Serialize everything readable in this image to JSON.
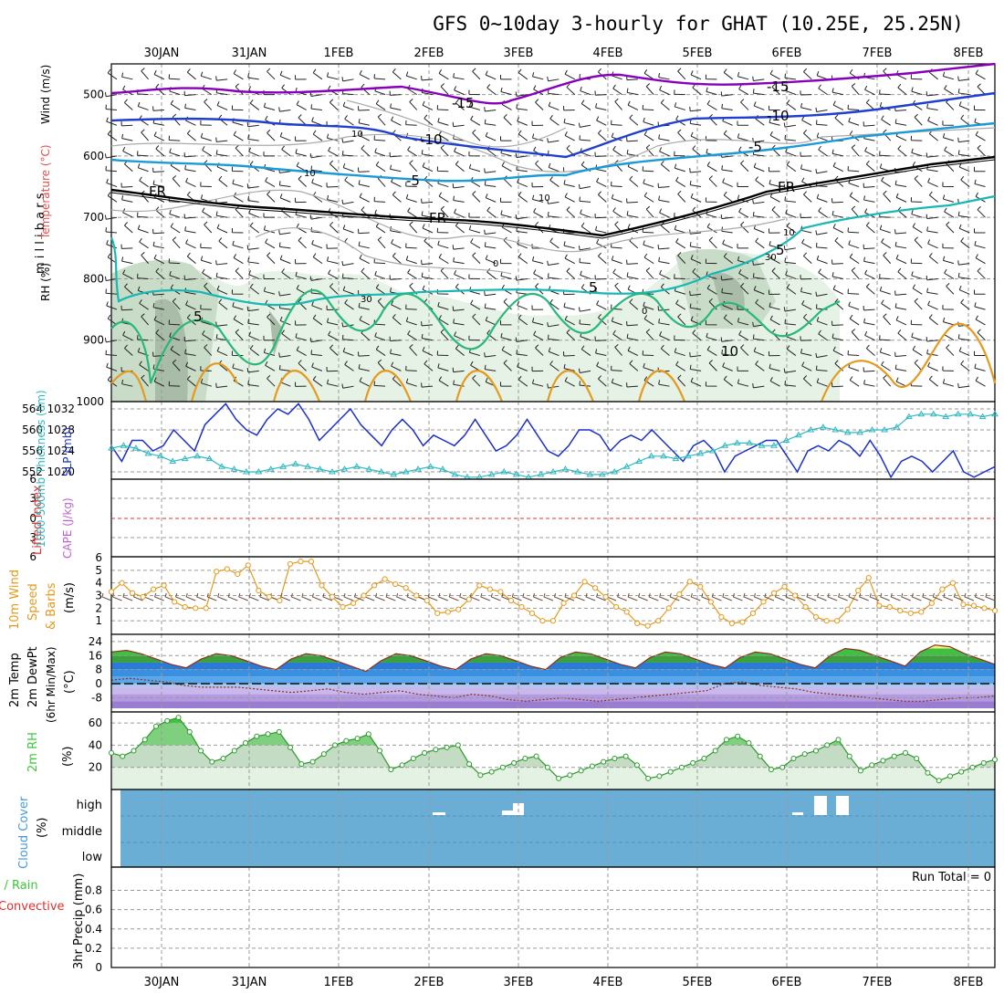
{
  "title": "GFS 0~10day 3-hourly for GHAT (10.25E, 25.25N)",
  "colors": {
    "purple": "#8800bb",
    "blue": "#1e3fd0",
    "lightblue": "#1a9ad6",
    "teal": "#18b8b4",
    "green": "#28b878",
    "orange": "#e49a1e",
    "cloud": "#6aaed6",
    "rh": "#3ac83a",
    "wind10": "#e49a1e",
    "slp": "#1a30c8",
    "thick": "#30b8c0"
  },
  "chart_data": [
    {
      "type": "contour",
      "name": "upper-air",
      "x_dates": [
        "30JAN",
        "31JAN",
        "1FEB",
        "2FEB",
        "3FEB",
        "4FEB",
        "5FEB",
        "6FEB",
        "7FEB",
        "8FEB"
      ],
      "y_label": "m i l l i b a r s",
      "y_ticks": [
        "500",
        "600",
        "700",
        "800",
        "900",
        "1000"
      ],
      "y_range": [
        450,
        1000
      ],
      "left_labels": {
        "rh": "RH (%)",
        "temp": "Temperature (°C)",
        "wind": "Wind (m/s)"
      },
      "contour_labels": [
        "-15",
        "-15",
        "-10",
        "-10",
        "-5",
        "-5",
        "FR",
        "FR",
        "FR",
        "10",
        "10",
        "10",
        "30",
        "30",
        "5",
        "5",
        "5",
        "0",
        "0",
        "10",
        "10"
      ]
    },
    {
      "type": "line",
      "name": "slp-thickness",
      "left_ticks": [
        "564",
        "560",
        "556",
        "552"
      ],
      "right_ticks": [
        "1032",
        "1028",
        "1024",
        "1020"
      ],
      "left_label": "1000-500mb Thickness (dm)",
      "right_label": "SLP (mb)",
      "slp": [
        1025,
        1022,
        1026,
        1026,
        1024,
        1025,
        1028,
        1026,
        1024,
        1029,
        1031,
        1033,
        1030,
        1028,
        1027,
        1030,
        1032,
        1031,
        1033,
        1030,
        1026,
        1028,
        1030,
        1032,
        1029,
        1027,
        1025,
        1028,
        1030,
        1028,
        1025,
        1027,
        1026,
        1025,
        1027,
        1030,
        1027,
        1024,
        1025,
        1027,
        1030,
        1027,
        1024,
        1023,
        1025,
        1028,
        1028,
        1027,
        1024,
        1026,
        1027,
        1026,
        1028,
        1026,
        1024,
        1022,
        1025,
        1026,
        1024,
        1020,
        1023,
        1024,
        1025,
        1026,
        1026,
        1023,
        1020,
        1024,
        1025,
        1024,
        1026,
        1025,
        1023,
        1026,
        1023,
        1019,
        1022,
        1023,
        1022,
        1020,
        1022,
        1024,
        1020,
        1019,
        1020,
        1021
      ],
      "thickness": [
        556.5,
        557,
        556.5,
        555.5,
        555,
        554,
        554.5,
        555,
        554.5,
        553,
        552.5,
        552,
        552,
        552.5,
        553,
        553.5,
        553,
        552.5,
        552,
        552.5,
        553,
        552.5,
        552,
        551.5,
        552,
        552.5,
        553,
        552.5,
        551.5,
        551,
        551,
        551.5,
        552,
        551.5,
        551,
        551.5,
        552,
        552.5,
        552,
        551.5,
        551.5,
        552,
        553,
        554,
        555,
        555,
        554.5,
        555,
        555.5,
        556,
        557,
        557.5,
        557.5,
        557,
        557,
        558,
        559,
        560,
        560.5,
        560,
        559.5,
        559.5,
        560,
        560,
        560.5,
        562.5,
        563,
        563,
        562.5,
        563,
        563,
        562.5,
        563
      ]
    },
    {
      "type": "line",
      "name": "cape-lifted-index",
      "ticks": [
        "6",
        "3",
        "0",
        "3",
        "6"
      ],
      "left_label": "Lifted Index",
      "right_label": "CAPE (J/kg)",
      "lifted_index": [
        0
      ]
    },
    {
      "type": "line",
      "name": "wind10m",
      "ticks": [
        "6",
        "5",
        "4",
        "3",
        "2",
        "1"
      ],
      "y_range": [
        0.5,
        6
      ],
      "label1": "10m Wind",
      "label2": "Speed",
      "label3": "& Barbs",
      "unit": "(m/s)",
      "values": [
        3.3,
        4.0,
        3.2,
        2.9,
        3.5,
        3.8,
        2.5,
        2.1,
        2.0,
        2.0,
        4.9,
        5.1,
        4.7,
        5.4,
        3.4,
        2.9,
        2.6,
        5.5,
        5.7,
        5.7,
        3.8,
        2.9,
        2.1,
        2.4,
        3.0,
        3.8,
        4.3,
        3.9,
        3.6,
        3.0,
        2.6,
        1.6,
        1.7,
        1.9,
        2.7,
        3.8,
        3.5,
        3.3,
        2.6,
        2.1,
        1.6,
        1.0,
        1.0,
        2.4,
        3.0,
        4.1,
        3.6,
        2.9,
        2.1,
        1.7,
        0.8,
        0.6,
        1.0,
        2.0,
        3.1,
        4.1,
        3.7,
        2.5,
        1.3,
        0.8,
        0.9,
        1.6,
        2.5,
        3.2,
        3.7,
        3.0,
        2.1,
        1.3,
        1.0,
        1.0,
        1.9,
        3.4,
        4.4,
        2.2,
        2.1,
        1.8,
        1.6,
        1.7,
        2.4,
        3.5,
        4.0,
        2.3,
        2.2,
        2.0,
        1.8
      ]
    },
    {
      "type": "area",
      "name": "temp-dewpoint",
      "ticks": [
        "24",
        "16",
        "8",
        "0",
        "-8"
      ],
      "y_range": [
        -14,
        26
      ],
      "label1": "2m Temp",
      "label2": "2m DewPt",
      "label3": "(6hr Min/Max)",
      "unit": "(°C)",
      "temp": [
        18,
        19,
        17,
        14,
        11,
        9,
        14,
        17,
        16,
        13,
        10,
        8,
        14,
        17,
        16,
        13,
        10,
        7,
        13,
        17,
        16,
        13,
        10,
        8,
        14,
        17,
        16,
        13,
        10,
        8,
        15,
        18,
        17,
        14,
        11,
        9,
        15,
        18,
        17,
        14,
        11,
        9,
        15,
        18,
        17,
        14,
        11,
        9,
        16,
        20,
        19,
        16,
        13,
        10,
        18,
        22,
        21,
        17,
        14,
        11
      ],
      "dewpoint": [
        2,
        3,
        2,
        1,
        -1,
        -2,
        -2,
        -2,
        -3,
        -4,
        -5,
        -4,
        -3,
        -5,
        -6,
        -5,
        -4,
        -6,
        -7,
        -8,
        -6,
        -7,
        -9,
        -10,
        -9,
        -8,
        -9,
        -10,
        -9,
        -8,
        -7,
        -6,
        -5,
        -4,
        0,
        1,
        -1,
        -2,
        -3,
        -5,
        -6,
        -7,
        -8,
        -9,
        -10,
        -10,
        -9,
        -8,
        -8,
        -7
      ]
    },
    {
      "type": "area",
      "name": "rh2m",
      "ticks": [
        "60",
        "40",
        "20"
      ],
      "y_range": [
        0,
        70
      ],
      "label": "2m RH",
      "unit": "(%)",
      "values": [
        33,
        30,
        35,
        45,
        57,
        62,
        65,
        52,
        35,
        25,
        28,
        35,
        42,
        48,
        50,
        52,
        38,
        23,
        25,
        32,
        40,
        44,
        46,
        50,
        35,
        18,
        22,
        28,
        33,
        36,
        38,
        40,
        23,
        13,
        16,
        20,
        24,
        28,
        30,
        20,
        10,
        13,
        17,
        21,
        25,
        28,
        30,
        22,
        10,
        12,
        16,
        20,
        24,
        28,
        35,
        45,
        48,
        42,
        30,
        18,
        20,
        28,
        32,
        35,
        40,
        45,
        30,
        17,
        22,
        26,
        30,
        33,
        28,
        15,
        8,
        12,
        16,
        20,
        24,
        27
      ]
    },
    {
      "type": "bar",
      "name": "cloud-cover",
      "levels": [
        "high",
        "middle",
        "low"
      ],
      "label": "Cloud Cover",
      "unit": "(%)",
      "gaps": "sparse high-level gaps near 2FEB, 3FEB and 6FEB"
    },
    {
      "type": "bar",
      "name": "precip",
      "ticks": [
        "0.8",
        "0.6",
        "0.4",
        "0.2",
        "0"
      ],
      "y_range": [
        0,
        1
      ],
      "run_total": "Run Total = 0",
      "label1": "Total / Rain",
      "label2": "Convective",
      "label3": "3hr Precip (mm)",
      "values": []
    }
  ]
}
